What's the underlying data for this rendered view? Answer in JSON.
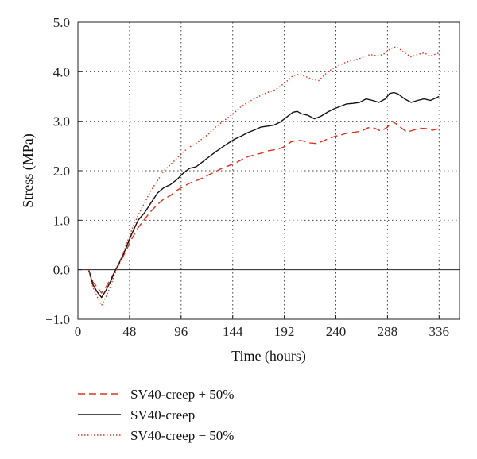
{
  "chart_data": {
    "type": "line",
    "title": "",
    "xlabel": "Time (hours)",
    "ylabel": "Stress (MPa)",
    "xlim": [
      0,
      355
    ],
    "ylim": [
      -1.0,
      5.0
    ],
    "x_ticks": [
      0,
      48,
      96,
      144,
      192,
      240,
      288,
      336
    ],
    "x_tick_labels": [
      "0",
      "48",
      "96",
      "144",
      "192",
      "240",
      "288",
      "336"
    ],
    "y_ticks": [
      -1.0,
      0.0,
      1.0,
      2.0,
      3.0,
      4.0,
      5.0
    ],
    "y_tick_labels": [
      "−1.0",
      "0.0",
      "1.0",
      "2.0",
      "3.0",
      "4.0",
      "5.0"
    ],
    "grid": "dotted",
    "legend_position": "bottom-left",
    "series": [
      {
        "name": "SV40-creep + 50%",
        "color": "#e0301e",
        "dash": "dashed",
        "points": [
          [
            10,
            0.0
          ],
          [
            14,
            -0.25
          ],
          [
            18,
            -0.35
          ],
          [
            22,
            -0.47
          ],
          [
            26,
            -0.35
          ],
          [
            30,
            -0.2
          ],
          [
            34,
            -0.05
          ],
          [
            38,
            0.1
          ],
          [
            44,
            0.35
          ],
          [
            50,
            0.62
          ],
          [
            56,
            0.85
          ],
          [
            62,
            1.02
          ],
          [
            68,
            1.18
          ],
          [
            74,
            1.32
          ],
          [
            80,
            1.43
          ],
          [
            86,
            1.5
          ],
          [
            92,
            1.6
          ],
          [
            98,
            1.68
          ],
          [
            104,
            1.75
          ],
          [
            110,
            1.8
          ],
          [
            116,
            1.85
          ],
          [
            122,
            1.92
          ],
          [
            128,
            1.98
          ],
          [
            134,
            2.05
          ],
          [
            140,
            2.1
          ],
          [
            146,
            2.15
          ],
          [
            152,
            2.22
          ],
          [
            158,
            2.28
          ],
          [
            164,
            2.32
          ],
          [
            170,
            2.35
          ],
          [
            176,
            2.4
          ],
          [
            182,
            2.42
          ],
          [
            188,
            2.45
          ],
          [
            194,
            2.5
          ],
          [
            198,
            2.58
          ],
          [
            204,
            2.62
          ],
          [
            210,
            2.6
          ],
          [
            216,
            2.56
          ],
          [
            222,
            2.55
          ],
          [
            228,
            2.6
          ],
          [
            234,
            2.66
          ],
          [
            240,
            2.7
          ],
          [
            246,
            2.73
          ],
          [
            252,
            2.77
          ],
          [
            258,
            2.78
          ],
          [
            264,
            2.8
          ],
          [
            270,
            2.87
          ],
          [
            276,
            2.86
          ],
          [
            282,
            2.8
          ],
          [
            288,
            2.88
          ],
          [
            292,
            3.0
          ],
          [
            296,
            2.95
          ],
          [
            300,
            2.88
          ],
          [
            306,
            2.78
          ],
          [
            312,
            2.82
          ],
          [
            318,
            2.86
          ],
          [
            324,
            2.85
          ],
          [
            330,
            2.82
          ],
          [
            336,
            2.85
          ]
        ]
      },
      {
        "name": "SV40-creep",
        "color": "#111111",
        "dash": "solid",
        "points": [
          [
            10,
            0.0
          ],
          [
            14,
            -0.3
          ],
          [
            18,
            -0.45
          ],
          [
            22,
            -0.56
          ],
          [
            26,
            -0.42
          ],
          [
            30,
            -0.25
          ],
          [
            34,
            -0.05
          ],
          [
            38,
            0.12
          ],
          [
            44,
            0.4
          ],
          [
            50,
            0.72
          ],
          [
            56,
            1.0
          ],
          [
            62,
            1.15
          ],
          [
            68,
            1.35
          ],
          [
            74,
            1.55
          ],
          [
            80,
            1.66
          ],
          [
            86,
            1.72
          ],
          [
            92,
            1.82
          ],
          [
            98,
            1.95
          ],
          [
            104,
            2.05
          ],
          [
            110,
            2.08
          ],
          [
            116,
            2.18
          ],
          [
            122,
            2.28
          ],
          [
            128,
            2.38
          ],
          [
            134,
            2.47
          ],
          [
            140,
            2.56
          ],
          [
            146,
            2.64
          ],
          [
            152,
            2.7
          ],
          [
            158,
            2.77
          ],
          [
            164,
            2.82
          ],
          [
            170,
            2.88
          ],
          [
            176,
            2.9
          ],
          [
            182,
            2.92
          ],
          [
            188,
            2.98
          ],
          [
            194,
            3.08
          ],
          [
            200,
            3.18
          ],
          [
            204,
            3.2
          ],
          [
            208,
            3.15
          ],
          [
            214,
            3.12
          ],
          [
            220,
            3.05
          ],
          [
            226,
            3.1
          ],
          [
            232,
            3.18
          ],
          [
            238,
            3.25
          ],
          [
            244,
            3.3
          ],
          [
            250,
            3.35
          ],
          [
            256,
            3.36
          ],
          [
            262,
            3.38
          ],
          [
            268,
            3.45
          ],
          [
            274,
            3.42
          ],
          [
            280,
            3.38
          ],
          [
            286,
            3.45
          ],
          [
            290,
            3.56
          ],
          [
            294,
            3.58
          ],
          [
            298,
            3.55
          ],
          [
            304,
            3.45
          ],
          [
            310,
            3.38
          ],
          [
            316,
            3.42
          ],
          [
            322,
            3.45
          ],
          [
            328,
            3.42
          ],
          [
            336,
            3.5
          ]
        ]
      },
      {
        "name": "SV40-creep − 50%",
        "color": "#e0301e",
        "dash": "dotted",
        "points": [
          [
            10,
            0.0
          ],
          [
            14,
            -0.35
          ],
          [
            18,
            -0.55
          ],
          [
            22,
            -0.72
          ],
          [
            26,
            -0.55
          ],
          [
            30,
            -0.35
          ],
          [
            34,
            -0.1
          ],
          [
            38,
            0.1
          ],
          [
            44,
            0.45
          ],
          [
            50,
            0.8
          ],
          [
            56,
            1.1
          ],
          [
            62,
            1.35
          ],
          [
            68,
            1.6
          ],
          [
            74,
            1.8
          ],
          [
            80,
            2.0
          ],
          [
            86,
            2.12
          ],
          [
            92,
            2.25
          ],
          [
            98,
            2.38
          ],
          [
            104,
            2.48
          ],
          [
            110,
            2.55
          ],
          [
            116,
            2.65
          ],
          [
            122,
            2.75
          ],
          [
            128,
            2.88
          ],
          [
            134,
            2.98
          ],
          [
            140,
            3.08
          ],
          [
            146,
            3.18
          ],
          [
            152,
            3.3
          ],
          [
            158,
            3.38
          ],
          [
            164,
            3.45
          ],
          [
            170,
            3.52
          ],
          [
            176,
            3.58
          ],
          [
            182,
            3.62
          ],
          [
            188,
            3.7
          ],
          [
            194,
            3.8
          ],
          [
            200,
            3.92
          ],
          [
            206,
            3.95
          ],
          [
            212,
            3.9
          ],
          [
            218,
            3.85
          ],
          [
            224,
            3.82
          ],
          [
            230,
            3.95
          ],
          [
            236,
            4.05
          ],
          [
            242,
            4.12
          ],
          [
            248,
            4.18
          ],
          [
            254,
            4.22
          ],
          [
            260,
            4.25
          ],
          [
            266,
            4.3
          ],
          [
            272,
            4.35
          ],
          [
            278,
            4.32
          ],
          [
            284,
            4.35
          ],
          [
            290,
            4.45
          ],
          [
            294,
            4.5
          ],
          [
            298,
            4.48
          ],
          [
            304,
            4.38
          ],
          [
            310,
            4.3
          ],
          [
            316,
            4.35
          ],
          [
            322,
            4.38
          ],
          [
            328,
            4.32
          ],
          [
            336,
            4.38
          ]
        ]
      }
    ]
  }
}
